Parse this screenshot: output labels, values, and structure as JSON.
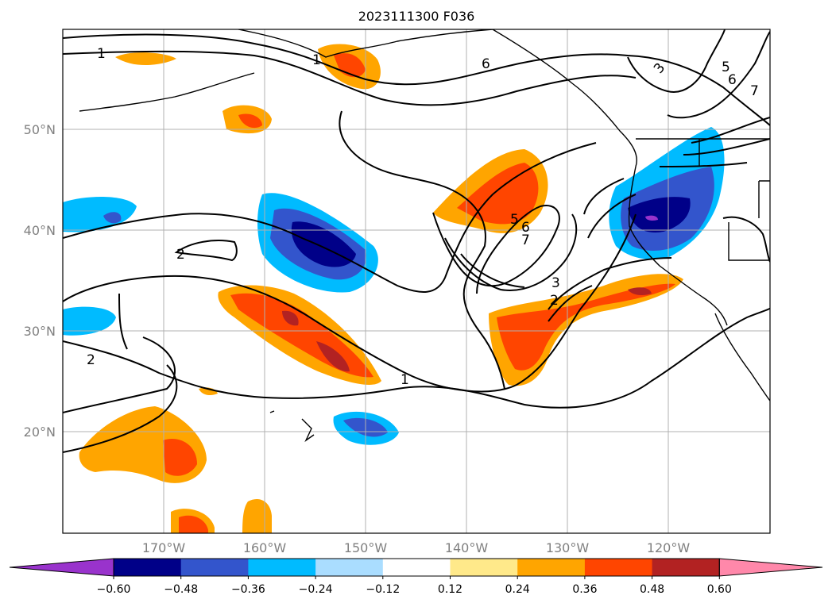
{
  "title": "2023111300 F036",
  "lat_labels": [
    "50°N",
    "40°N",
    "30°N",
    "20°N"
  ],
  "lon_labels": [
    "170°W",
    "160°W",
    "150°W",
    "140°W",
    "130°W",
    "120°W"
  ],
  "colorbar": {
    "colors": [
      "#9933cc",
      "#000088",
      "#3355cc",
      "#00bbff",
      "#aaddff",
      "#ffffff",
      "#ffe98a",
      "#ffa500",
      "#ff4500",
      "#b22222",
      "#ff88aa"
    ],
    "tick_labels": [
      "−0.60",
      "−0.48",
      "−0.36",
      "−0.24",
      "−0.12",
      "0.12",
      "0.24",
      "0.36",
      "0.48",
      "0.60"
    ]
  },
  "contour_labels": [
    "1",
    "6",
    "3",
    "5",
    "6",
    "7",
    "2",
    "2",
    "5",
    "6",
    "7",
    "3",
    "2",
    "1",
    "1"
  ]
}
